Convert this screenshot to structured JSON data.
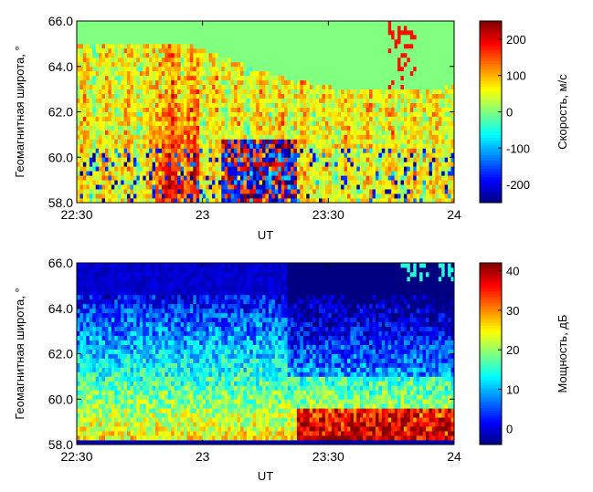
{
  "chart_data": [
    {
      "type": "heatmap",
      "xlabel": "UT",
      "ylabel": "Геомагнитная широта, °",
      "x_ticks": [
        "22:30",
        "23",
        "23:30",
        "24"
      ],
      "xlim_hours": [
        22.5,
        24.0
      ],
      "y_ticks": [
        "58.0",
        "60.0",
        "62.0",
        "64.0",
        "66.0"
      ],
      "ylim": [
        58.0,
        66.0
      ],
      "colorbar": {
        "label": "Скорость, м/с",
        "ticks": [
          "-200",
          "-100",
          "0",
          "100",
          "200"
        ],
        "range": [
          -250,
          250
        ]
      },
      "colormap": "jet",
      "description_values": {
        "min": -250,
        "max": 250
      }
    },
    {
      "type": "heatmap",
      "xlabel": "UT",
      "ylabel": "Геомагнитная широта, °",
      "x_ticks": [
        "22:30",
        "23",
        "23:30",
        "24"
      ],
      "xlim_hours": [
        22.5,
        24.0
      ],
      "y_ticks": [
        "58.0",
        "60.0",
        "62.0",
        "64.0",
        "66.0"
      ],
      "ylim": [
        58.0,
        66.0
      ],
      "colorbar": {
        "label": "Мощность, дБ",
        "ticks": [
          "0",
          "10",
          "20",
          "30",
          "40"
        ],
        "range": [
          -4,
          42
        ]
      },
      "colormap": "jet",
      "description_values": {
        "min": -4,
        "max": 42
      }
    }
  ]
}
